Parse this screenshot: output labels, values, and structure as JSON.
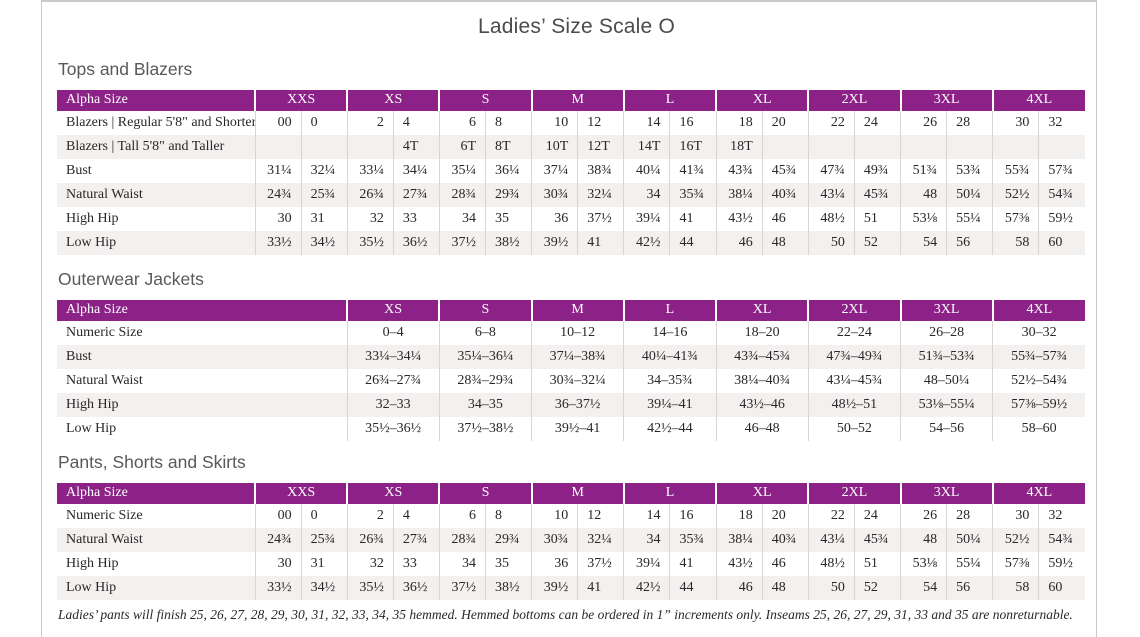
{
  "page": {
    "title": "Ladies’ Size Scale O",
    "footnote": "Ladies’ pants will finish 25, 26, 27, 28, 29, 30, 31, 32, 33, 34, 35 hemmed. Hemmed bottoms can be ordered in 1” increments only. Inseams 25, 26, 27, 29, 31, 33 and 35 are nonreturnable."
  },
  "colors": {
    "accent": "#8c2287",
    "stripe": "#f2f1ef",
    "grid": "#d8d5d2",
    "heading_text": "#58595b",
    "page_border": "#c9c9c9"
  },
  "tables": [
    {
      "id": "tops-and-blazers",
      "heading": "Tops and Blazers",
      "type": "split",
      "header_label": "Alpha Size",
      "sizes": [
        "XXS",
        "XS",
        "S",
        "M",
        "L",
        "XL",
        "2XL",
        "3XL",
        "4XL"
      ],
      "rows": [
        {
          "label": "Blazers  |  Regular 5'8\" and Shorter",
          "values": [
            "00",
            "0",
            "2",
            "4",
            "6",
            "8",
            "10",
            "12",
            "14",
            "16",
            "18",
            "20",
            "22",
            "24",
            "26",
            "28",
            "30",
            "32"
          ]
        },
        {
          "label": "Blazers  |  Tall 5'8\" and Taller",
          "values": [
            "",
            "",
            "",
            "4T",
            "6T",
            "8T",
            "10T",
            "12T",
            "14T",
            "16T",
            "18T",
            "",
            "",
            "",
            "",
            "",
            "",
            ""
          ]
        },
        {
          "label": "Bust",
          "values": [
            "31¼",
            "32¼",
            "33¼",
            "34¼",
            "35¼",
            "36¼",
            "37¼",
            "38¾",
            "40¼",
            "41¾",
            "43¾",
            "45¾",
            "47¾",
            "49¾",
            "51¾",
            "53¾",
            "55¾",
            "57¾"
          ]
        },
        {
          "label": "Natural Waist",
          "values": [
            "24¾",
            "25¾",
            "26¾",
            "27¾",
            "28¾",
            "29¾",
            "30¾",
            "32¼",
            "34",
            "35¾",
            "38¼",
            "40¾",
            "43¼",
            "45¾",
            "48",
            "50¼",
            "52½",
            "54¾"
          ]
        },
        {
          "label": "High Hip",
          "values": [
            "30",
            "31",
            "32",
            "33",
            "34",
            "35",
            "36",
            "37½",
            "39¼",
            "41",
            "43½",
            "46",
            "48½",
            "51",
            "53⅛",
            "55¼",
            "57⅜",
            "59½"
          ]
        },
        {
          "label": "Low Hip",
          "values": [
            "33½",
            "34½",
            "35½",
            "36½",
            "37½",
            "38½",
            "39½",
            "41",
            "42½",
            "44",
            "46",
            "48",
            "50",
            "52",
            "54",
            "56",
            "58",
            "60"
          ]
        }
      ]
    },
    {
      "id": "outerwear-jackets",
      "heading": "Outerwear Jackets",
      "type": "merged",
      "header_label": "Alpha Size",
      "sizes": [
        "XS",
        "S",
        "M",
        "L",
        "XL",
        "2XL",
        "3XL",
        "4XL"
      ],
      "rows": [
        {
          "label": "Numeric Size",
          "values": [
            "0–4",
            "6–8",
            "10–12",
            "14–16",
            "18–20",
            "22–24",
            "26–28",
            "30–32"
          ]
        },
        {
          "label": "Bust",
          "values": [
            "33¼–34¼",
            "35¼–36¼",
            "37¼–38¾",
            "40¼–41¾",
            "43¾–45¾",
            "47¾–49¾",
            "51¾–53¾",
            "55¾–57¾"
          ]
        },
        {
          "label": "Natural Waist",
          "values": [
            "26¾–27¾",
            "28¾–29¾",
            "30¾–32¼",
            "34–35¾",
            "38¼–40¾",
            "43¼–45¾",
            "48–50¼",
            "52½–54¾"
          ]
        },
        {
          "label": "High Hip",
          "values": [
            "32–33",
            "34–35",
            "36–37½",
            "39¼–41",
            "43½–46",
            "48½–51",
            "53⅛–55¼",
            "57⅜–59½"
          ]
        },
        {
          "label": "Low Hip",
          "values": [
            "35½–36½",
            "37½–38½",
            "39½–41",
            "42½–44",
            "46–48",
            "50–52",
            "54–56",
            "58–60"
          ]
        }
      ]
    },
    {
      "id": "pants-shorts-skirts",
      "heading": "Pants, Shorts and Skirts",
      "type": "split",
      "header_label": "Alpha Size",
      "sizes": [
        "XXS",
        "XS",
        "S",
        "M",
        "L",
        "XL",
        "2XL",
        "3XL",
        "4XL"
      ],
      "rows": [
        {
          "label": "Numeric Size",
          "values": [
            "00",
            "0",
            "2",
            "4",
            "6",
            "8",
            "10",
            "12",
            "14",
            "16",
            "18",
            "20",
            "22",
            "24",
            "26",
            "28",
            "30",
            "32"
          ]
        },
        {
          "label": "Natural Waist",
          "values": [
            "24¾",
            "25¾",
            "26¾",
            "27¾",
            "28¾",
            "29¾",
            "30¾",
            "32¼",
            "34",
            "35¾",
            "38¼",
            "40¾",
            "43¼",
            "45¾",
            "48",
            "50¼",
            "52½",
            "54¾"
          ]
        },
        {
          "label": "High Hip",
          "values": [
            "30",
            "31",
            "32",
            "33",
            "34",
            "35",
            "36",
            "37½",
            "39¼",
            "41",
            "43½",
            "46",
            "48½",
            "51",
            "53⅛",
            "55¼",
            "57⅜",
            "59½"
          ]
        },
        {
          "label": "Low Hip",
          "values": [
            "33½",
            "34½",
            "35½",
            "36½",
            "37½",
            "38½",
            "39½",
            "41",
            "42½",
            "44",
            "46",
            "48",
            "50",
            "52",
            "54",
            "56",
            "58",
            "60"
          ]
        }
      ]
    }
  ]
}
